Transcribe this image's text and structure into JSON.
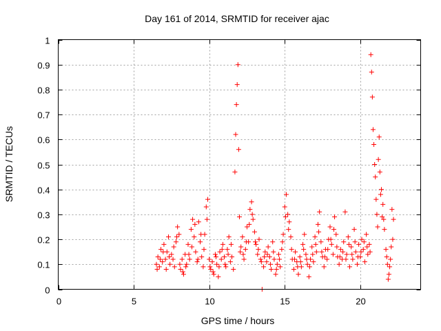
{
  "chart_data": {
    "type": "scatter",
    "title": "Day 161 of 2014, SRMTID for receiver ajac",
    "xlabel": "GPS time / hours",
    "ylabel": "SRMTID / TECUs",
    "xlim": [
      0,
      24
    ],
    "ylim": [
      0,
      1
    ],
    "x_ticks": [
      0,
      5,
      10,
      15,
      20
    ],
    "x_tick_labels": [
      "0",
      "5",
      "10",
      "15",
      "20"
    ],
    "y_ticks": [
      0,
      0.1,
      0.2,
      0.3,
      0.4,
      0.5,
      0.6,
      0.7,
      0.8,
      0.9,
      1
    ],
    "y_tick_labels": [
      "0",
      "0.1",
      "0.2",
      "0.3",
      "0.4",
      "0.5",
      "0.6",
      "0.7",
      "0.8",
      "0.9",
      "1"
    ],
    "grid": true,
    "marker": "+",
    "series": [
      {
        "name": "SRMTID",
        "color": "#ff0000",
        "points": [
          [
            6.5,
            0.1
          ],
          [
            6.6,
            0.13
          ],
          [
            6.7,
            0.09
          ],
          [
            6.8,
            0.16
          ],
          [
            6.9,
            0.11
          ],
          [
            7.0,
            0.18
          ],
          [
            7.1,
            0.12
          ],
          [
            7.2,
            0.15
          ],
          [
            7.3,
            0.21
          ],
          [
            7.4,
            0.1
          ],
          [
            7.5,
            0.14
          ],
          [
            7.6,
            0.12
          ],
          [
            7.7,
            0.09
          ],
          [
            7.8,
            0.19
          ],
          [
            7.9,
            0.25
          ],
          [
            8.0,
            0.22
          ],
          [
            8.1,
            0.08
          ],
          [
            8.2,
            0.12
          ],
          [
            8.3,
            0.06
          ],
          [
            8.4,
            0.14
          ],
          [
            8.5,
            0.1
          ],
          [
            8.6,
            0.18
          ],
          [
            8.7,
            0.12
          ],
          [
            8.8,
            0.24
          ],
          [
            8.9,
            0.28
          ],
          [
            9.0,
            0.21
          ],
          [
            9.1,
            0.15
          ],
          [
            9.2,
            0.11
          ],
          [
            9.3,
            0.27
          ],
          [
            9.4,
            0.19
          ],
          [
            9.5,
            0.13
          ],
          [
            9.6,
            0.09
          ],
          [
            9.7,
            0.22
          ],
          [
            9.8,
            0.33
          ],
          [
            9.9,
            0.36
          ],
          [
            10.0,
            0.12
          ],
          [
            10.1,
            0.08
          ],
          [
            10.2,
            0.11
          ],
          [
            10.3,
            0.06
          ],
          [
            10.4,
            0.14
          ],
          [
            10.5,
            0.1
          ],
          [
            10.6,
            0.05
          ],
          [
            10.7,
            0.15
          ],
          [
            10.8,
            0.12
          ],
          [
            10.9,
            0.18
          ],
          [
            11.0,
            0.13
          ],
          [
            11.1,
            0.09
          ],
          [
            11.2,
            0.16
          ],
          [
            11.3,
            0.21
          ],
          [
            11.4,
            0.11
          ],
          [
            11.5,
            0.13
          ],
          [
            11.6,
            0.08
          ],
          [
            11.7,
            0.47
          ],
          [
            11.75,
            0.62
          ],
          [
            11.8,
            0.74
          ],
          [
            11.85,
            0.82
          ],
          [
            11.9,
            0.9
          ],
          [
            11.95,
            0.56
          ],
          [
            12.0,
            0.29
          ],
          [
            12.1,
            0.17
          ],
          [
            12.2,
            0.21
          ],
          [
            12.3,
            0.12
          ],
          [
            12.4,
            0.16
          ],
          [
            12.5,
            0.25
          ],
          [
            12.6,
            0.19
          ],
          [
            12.7,
            0.32
          ],
          [
            12.8,
            0.35
          ],
          [
            12.9,
            0.28
          ],
          [
            13.0,
            0.23
          ],
          [
            13.1,
            0.18
          ],
          [
            13.2,
            0.14
          ],
          [
            13.3,
            0.2
          ],
          [
            13.4,
            0.12
          ],
          [
            13.5,
            0.0
          ],
          [
            13.6,
            0.09
          ],
          [
            13.7,
            0.15
          ],
          [
            13.8,
            0.11
          ],
          [
            13.9,
            0.17
          ],
          [
            14.0,
            0.13
          ],
          [
            14.1,
            0.08
          ],
          [
            14.2,
            0.19
          ],
          [
            14.3,
            0.12
          ],
          [
            14.4,
            0.06
          ],
          [
            14.5,
            0.1
          ],
          [
            14.6,
            0.14
          ],
          [
            14.7,
            0.09
          ],
          [
            14.8,
            0.16
          ],
          [
            14.9,
            0.22
          ],
          [
            15.0,
            0.33
          ],
          [
            15.1,
            0.38
          ],
          [
            15.2,
            0.3
          ],
          [
            15.3,
            0.27
          ],
          [
            15.4,
            0.21
          ],
          [
            15.5,
            0.12
          ],
          [
            15.6,
            0.08
          ],
          [
            15.7,
            0.15
          ],
          [
            15.8,
            0.11
          ],
          [
            15.9,
            0.06
          ],
          [
            16.0,
            0.13
          ],
          [
            16.1,
            0.09
          ],
          [
            16.2,
            0.18
          ],
          [
            16.3,
            0.22
          ],
          [
            16.4,
            0.14
          ],
          [
            16.5,
            0.1
          ],
          [
            16.6,
            0.05
          ],
          [
            16.7,
            0.12
          ],
          [
            16.8,
            0.17
          ],
          [
            16.9,
            0.11
          ],
          [
            17.0,
            0.21
          ],
          [
            17.1,
            0.15
          ],
          [
            17.2,
            0.26
          ],
          [
            17.3,
            0.31
          ],
          [
            17.4,
            0.19
          ],
          [
            17.5,
            0.13
          ],
          [
            17.6,
            0.09
          ],
          [
            17.7,
            0.16
          ],
          [
            17.8,
            0.12
          ],
          [
            17.9,
            0.2
          ],
          [
            18.0,
            0.25
          ],
          [
            18.1,
            0.18
          ],
          [
            18.2,
            0.14
          ],
          [
            18.3,
            0.29
          ],
          [
            18.4,
            0.22
          ],
          [
            18.5,
            0.13
          ],
          [
            18.6,
            0.1
          ],
          [
            18.7,
            0.16
          ],
          [
            18.8,
            0.12
          ],
          [
            18.9,
            0.19
          ],
          [
            19.0,
            0.31
          ],
          [
            19.1,
            0.14
          ],
          [
            19.2,
            0.21
          ],
          [
            19.3,
            0.09
          ],
          [
            19.4,
            0.17
          ],
          [
            19.5,
            0.12
          ],
          [
            19.6,
            0.24
          ],
          [
            19.7,
            0.15
          ],
          [
            19.8,
            0.1
          ],
          [
            19.9,
            0.18
          ],
          [
            20.0,
            0.13
          ],
          [
            20.1,
            0.2
          ],
          [
            20.2,
            0.16
          ],
          [
            20.3,
            0.11
          ],
          [
            20.4,
            0.22
          ],
          [
            20.5,
            0.14
          ],
          [
            20.6,
            0.18
          ],
          [
            20.7,
            0.94
          ],
          [
            20.75,
            0.87
          ],
          [
            20.8,
            0.77
          ],
          [
            20.85,
            0.64
          ],
          [
            20.9,
            0.58
          ],
          [
            20.95,
            0.5
          ],
          [
            21.0,
            0.45
          ],
          [
            21.05,
            0.36
          ],
          [
            21.1,
            0.3
          ],
          [
            21.2,
            0.52
          ],
          [
            21.3,
            0.47
          ],
          [
            21.4,
            0.4
          ],
          [
            21.5,
            0.34
          ],
          [
            21.6,
            0.24
          ],
          [
            21.7,
            0.16
          ],
          [
            21.8,
            0.1
          ],
          [
            21.9,
            0.06
          ],
          [
            22.0,
            0.12
          ],
          [
            22.1,
            0.32
          ],
          [
            22.2,
            0.28
          ],
          [
            22.15,
            0.2
          ],
          [
            21.85,
            0.04
          ],
          [
            21.45,
            0.29
          ],
          [
            21.25,
            0.61
          ],
          [
            20.65,
            0.15
          ],
          [
            6.55,
            0.08
          ],
          [
            6.75,
            0.12
          ],
          [
            6.95,
            0.15
          ],
          [
            7.15,
            0.08
          ],
          [
            7.35,
            0.13
          ],
          [
            7.65,
            0.17
          ],
          [
            7.85,
            0.21
          ],
          [
            8.05,
            0.1
          ],
          [
            8.25,
            0.07
          ],
          [
            8.45,
            0.09
          ],
          [
            8.65,
            0.14
          ],
          [
            8.85,
            0.17
          ],
          [
            9.05,
            0.26
          ],
          [
            9.25,
            0.12
          ],
          [
            9.45,
            0.22
          ],
          [
            9.65,
            0.16
          ],
          [
            9.85,
            0.28
          ],
          [
            10.05,
            0.09
          ],
          [
            10.25,
            0.07
          ],
          [
            10.45,
            0.13
          ],
          [
            10.65,
            0.09
          ],
          [
            10.85,
            0.16
          ],
          [
            11.05,
            0.1
          ],
          [
            11.25,
            0.14
          ],
          [
            11.45,
            0.18
          ],
          [
            12.05,
            0.15
          ],
          [
            12.25,
            0.14
          ],
          [
            12.45,
            0.19
          ],
          [
            12.65,
            0.26
          ],
          [
            12.85,
            0.3
          ],
          [
            13.05,
            0.19
          ],
          [
            13.25,
            0.16
          ],
          [
            13.45,
            0.11
          ],
          [
            13.65,
            0.13
          ],
          [
            13.85,
            0.14
          ],
          [
            14.05,
            0.1
          ],
          [
            14.25,
            0.15
          ],
          [
            14.45,
            0.08
          ],
          [
            14.65,
            0.12
          ],
          [
            14.85,
            0.19
          ],
          [
            15.05,
            0.29
          ],
          [
            15.25,
            0.24
          ],
          [
            15.45,
            0.16
          ],
          [
            15.65,
            0.12
          ],
          [
            15.85,
            0.09
          ],
          [
            16.05,
            0.11
          ],
          [
            16.25,
            0.16
          ],
          [
            16.45,
            0.12
          ],
          [
            16.65,
            0.09
          ],
          [
            16.85,
            0.14
          ],
          [
            17.05,
            0.18
          ],
          [
            17.25,
            0.23
          ],
          [
            17.45,
            0.15
          ],
          [
            17.65,
            0.13
          ],
          [
            17.85,
            0.16
          ],
          [
            18.05,
            0.2
          ],
          [
            18.25,
            0.24
          ],
          [
            18.45,
            0.17
          ],
          [
            18.65,
            0.13
          ],
          [
            18.85,
            0.15
          ],
          [
            19.05,
            0.12
          ],
          [
            19.25,
            0.18
          ],
          [
            19.45,
            0.14
          ],
          [
            19.65,
            0.19
          ],
          [
            19.85,
            0.13
          ],
          [
            20.05,
            0.15
          ],
          [
            20.25,
            0.19
          ],
          [
            20.45,
            0.17
          ],
          [
            21.15,
            0.25
          ],
          [
            21.35,
            0.38
          ],
          [
            21.55,
            0.28
          ],
          [
            21.75,
            0.13
          ],
          [
            21.95,
            0.09
          ],
          [
            22.05,
            0.17
          ]
        ]
      }
    ]
  }
}
